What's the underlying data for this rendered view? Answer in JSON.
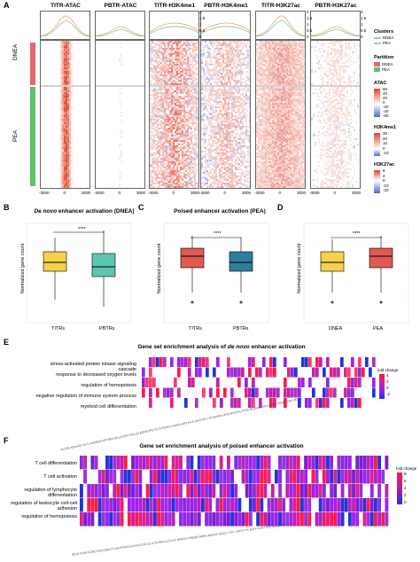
{
  "panelA": {
    "label": "A",
    "columns": [
      "TITR-ATAC",
      "PBTR-ATAC",
      "TITR-H3K4me1",
      "PBTR-H3K4me1",
      "TITR-H3K27ac",
      "PBTR-H3K27ac"
    ],
    "xticks": [
      "-3000",
      "0",
      "3000"
    ],
    "profile_ticks": [
      "2",
      "1.5",
      "1",
      "0.5",
      "0"
    ],
    "row_groups": [
      "DNEA",
      "PEA"
    ],
    "legend": {
      "clusters_title": "Clusters",
      "clusters": [
        "DNEA",
        "PEA"
      ],
      "partition_title": "Partition",
      "partition": [
        "DNEA",
        "PEA"
      ],
      "atac_title": "ATAC",
      "atac_ticks": [
        "60",
        "40",
        "20",
        "0",
        "-20",
        "-40",
        "-60"
      ],
      "h3k4me1_title": "H3K4me1",
      "h3k4me1_ticks": [
        "30",
        "20",
        "10",
        "0",
        "-10"
      ],
      "h3k27ac_title": "H3K27ac",
      "h3k27ac_ticks": [
        "8",
        "4",
        "0",
        "-10",
        "-20"
      ]
    },
    "colors": {
      "dnea": "#e8646e",
      "pea": "#5fc26a",
      "red": "#e0452f",
      "blue": "#5566cc"
    }
  },
  "panelB": {
    "label": "B",
    "title_em": "De novo",
    "title_rest": " enhancer activation (DNEA)",
    "ylabel": "Normalized gene count",
    "sig": "****",
    "groups": [
      "TITRs",
      "PBTRs"
    ],
    "colors": [
      "#f4d34a",
      "#5fc5b0"
    ]
  },
  "panelC": {
    "label": "C",
    "title": "Poised enhancer activation (PEA)",
    "ylabel": "Normalized gene count",
    "sig": "****",
    "groups": [
      "TITRs",
      "PBTRs"
    ],
    "colors": [
      "#e05a52",
      "#2f7d9c"
    ]
  },
  "panelD": {
    "label": "D",
    "ylabel": "Normalized gene count",
    "sig": "****",
    "groups": [
      "DNEA",
      "PEA"
    ],
    "colors": [
      "#f4d34a",
      "#e05a52"
    ]
  },
  "panelE": {
    "label": "E",
    "title_pre": "Gene set enrichment analysis of ",
    "title_em": "de novo",
    "title_post": " enhancer activation",
    "terms": [
      "stress-activated protein kinase signaling cascade",
      "response to decreased oxygen levels",
      "regulation of hemopoiesis",
      "negative regulation of immune system process",
      "myeloid cell differentiation"
    ],
    "legend_title": "fold change",
    "legend_ticks": [
      "4",
      "2",
      "0",
      "-2"
    ]
  },
  "panelF": {
    "label": "F",
    "title": "Gene set enrichment analysis of poised enhancer activation",
    "terms": [
      "T cell differentiation",
      "T cell activation",
      "regulation of lymphocyte differentiation",
      "regulation of leukocyte cell-cell adhesion",
      "regulation of hemopoiesis"
    ],
    "legend_title": "fold change",
    "legend_ticks": [
      "8",
      "6",
      "4",
      "2",
      "0"
    ]
  }
}
